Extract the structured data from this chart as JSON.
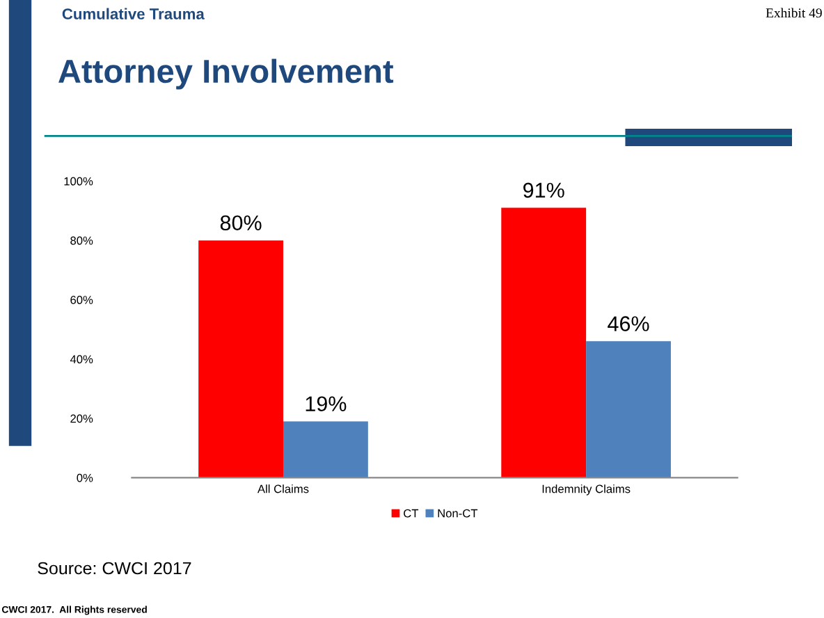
{
  "chart_data": {
    "type": "bar",
    "title": "Attorney Involvement",
    "categories": [
      "All Claims",
      "Indemnity Claims"
    ],
    "series": [
      {
        "name": "CT",
        "color": "#ff0000",
        "values": [
          80,
          91
        ]
      },
      {
        "name": "Non-CT",
        "color": "#4f81bd",
        "values": [
          19,
          46
        ]
      }
    ],
    "ylim": [
      0,
      100
    ],
    "yticks": [
      {
        "value": 0,
        "label": "0%"
      },
      {
        "value": 20,
        "label": "20%"
      },
      {
        "value": 40,
        "label": "40%"
      },
      {
        "value": 60,
        "label": "60%"
      },
      {
        "value": 80,
        "label": "80%"
      },
      {
        "value": 100,
        "label": "100%"
      }
    ],
    "value_labels": [
      [
        "80%",
        "91%"
      ],
      [
        "19%",
        "46%"
      ]
    ],
    "grid": false,
    "legend": "bottom",
    "annotations": [
      "Cumulative Trauma",
      "Exhibit 49",
      "Source: CWCI 2017",
      "CWCI 2017.  All Rights reserved"
    ]
  }
}
